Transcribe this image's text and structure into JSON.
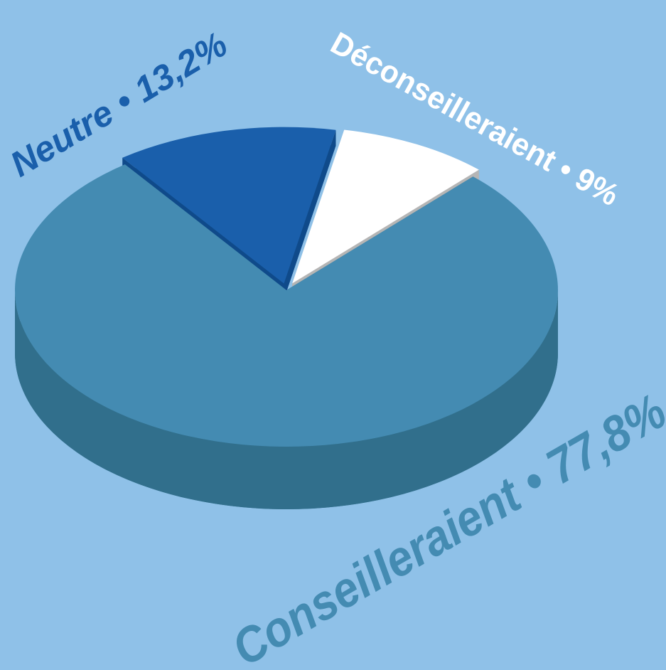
{
  "chart_data": {
    "type": "pie",
    "categories": [
      "Neutre",
      "Déconseilleraient",
      "Conseilleraient"
    ],
    "values": [
      13.2,
      9,
      77.8
    ],
    "value_labels": [
      "13,2%",
      "9%",
      "77,8%"
    ],
    "label_separator": "•",
    "colors": [
      "#1a5fab",
      "#ffffff",
      "#448bb2"
    ],
    "three_d": true
  }
}
